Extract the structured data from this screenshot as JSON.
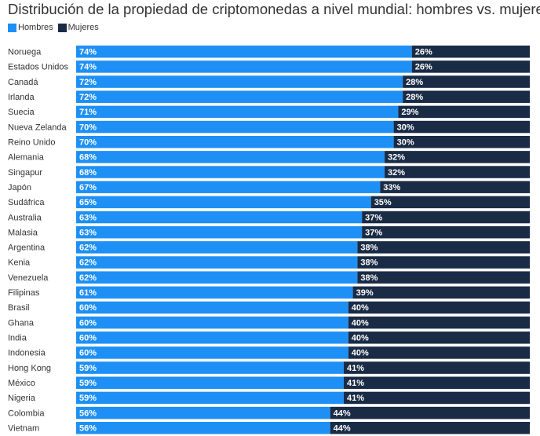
{
  "chart_data": {
    "type": "bar",
    "orientation": "horizontal",
    "stacked": true,
    "title": "Distribución de la propiedad de criptomonedas a nivel mundial: hombres vs. mujeres",
    "legend_position": "top-left",
    "xlim": [
      0,
      100
    ],
    "grid": false,
    "categories": [
      "Noruega",
      "Estados Unidos",
      "Canadá",
      "Irlanda",
      "Suecia",
      "Nueva Zelanda",
      "Reino Unido",
      "Alemania",
      "Singapur",
      "Japón",
      "Sudáfrica",
      "Australia",
      "Malasia",
      "Argentina",
      "Kenia",
      "Venezuela",
      "Filipinas",
      "Brasil",
      "Ghana",
      "India",
      "Indonesia",
      "Hong Kong",
      "México",
      "Nigeria",
      "Colombia",
      "Vietnam"
    ],
    "series": [
      {
        "name": "Hombres",
        "color": "#1e90f5",
        "values": [
          74,
          74,
          72,
          72,
          71,
          70,
          70,
          68,
          68,
          67,
          65,
          63,
          63,
          62,
          62,
          62,
          61,
          60,
          60,
          60,
          60,
          59,
          59,
          59,
          56,
          56
        ]
      },
      {
        "name": "Mujeres",
        "color": "#1a2b45",
        "values": [
          26,
          26,
          28,
          28,
          29,
          30,
          30,
          32,
          32,
          33,
          35,
          37,
          37,
          38,
          38,
          38,
          39,
          40,
          40,
          40,
          40,
          41,
          41,
          41,
          44,
          44
        ]
      }
    ],
    "value_suffix": "%"
  }
}
